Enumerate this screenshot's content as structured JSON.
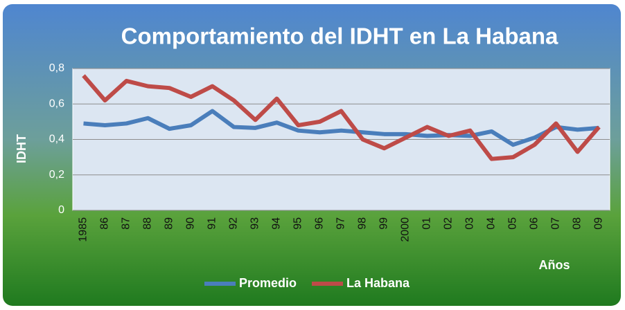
{
  "chart_data": {
    "type": "line",
    "title": "Comportamiento del IDHT en La Habana",
    "y_label": "IDHT",
    "x_label": "Años",
    "categories": [
      "1985",
      "86",
      "87",
      "88",
      "89",
      "90",
      "91",
      "92",
      "93",
      "94",
      "95",
      "96",
      "97",
      "98",
      "99",
      "2000",
      "01",
      "02",
      "03",
      "04",
      "05",
      "06",
      "07",
      "08",
      "09"
    ],
    "series": [
      {
        "name": "Promedio",
        "color": "#4a7ebb",
        "values": [
          0.49,
          0.48,
          0.49,
          0.52,
          0.46,
          0.48,
          0.56,
          0.47,
          0.465,
          0.495,
          0.45,
          0.44,
          0.45,
          0.44,
          0.43,
          0.43,
          0.42,
          0.425,
          0.42,
          0.445,
          0.37,
          0.41,
          0.47,
          0.455,
          0.465
        ]
      },
      {
        "name": "La Habana",
        "color": "#be4b48",
        "values": [
          0.76,
          0.62,
          0.73,
          0.7,
          0.69,
          0.64,
          0.7,
          0.62,
          0.51,
          0.63,
          0.48,
          0.5,
          0.56,
          0.4,
          0.35,
          0.41,
          0.47,
          0.42,
          0.45,
          0.29,
          0.3,
          0.37,
          0.49,
          0.33,
          0.47
        ]
      }
    ],
    "ylim": [
      0,
      0.8
    ],
    "yticks": [
      0,
      {
        "value": 0.2,
        "label": "0,2"
      },
      {
        "value": 0.4,
        "label": "0,4"
      },
      {
        "value": 0.6,
        "label": "0,6"
      },
      {
        "value": 0.8,
        "label": "0,8"
      }
    ],
    "grid": true,
    "legend": "bottom"
  }
}
